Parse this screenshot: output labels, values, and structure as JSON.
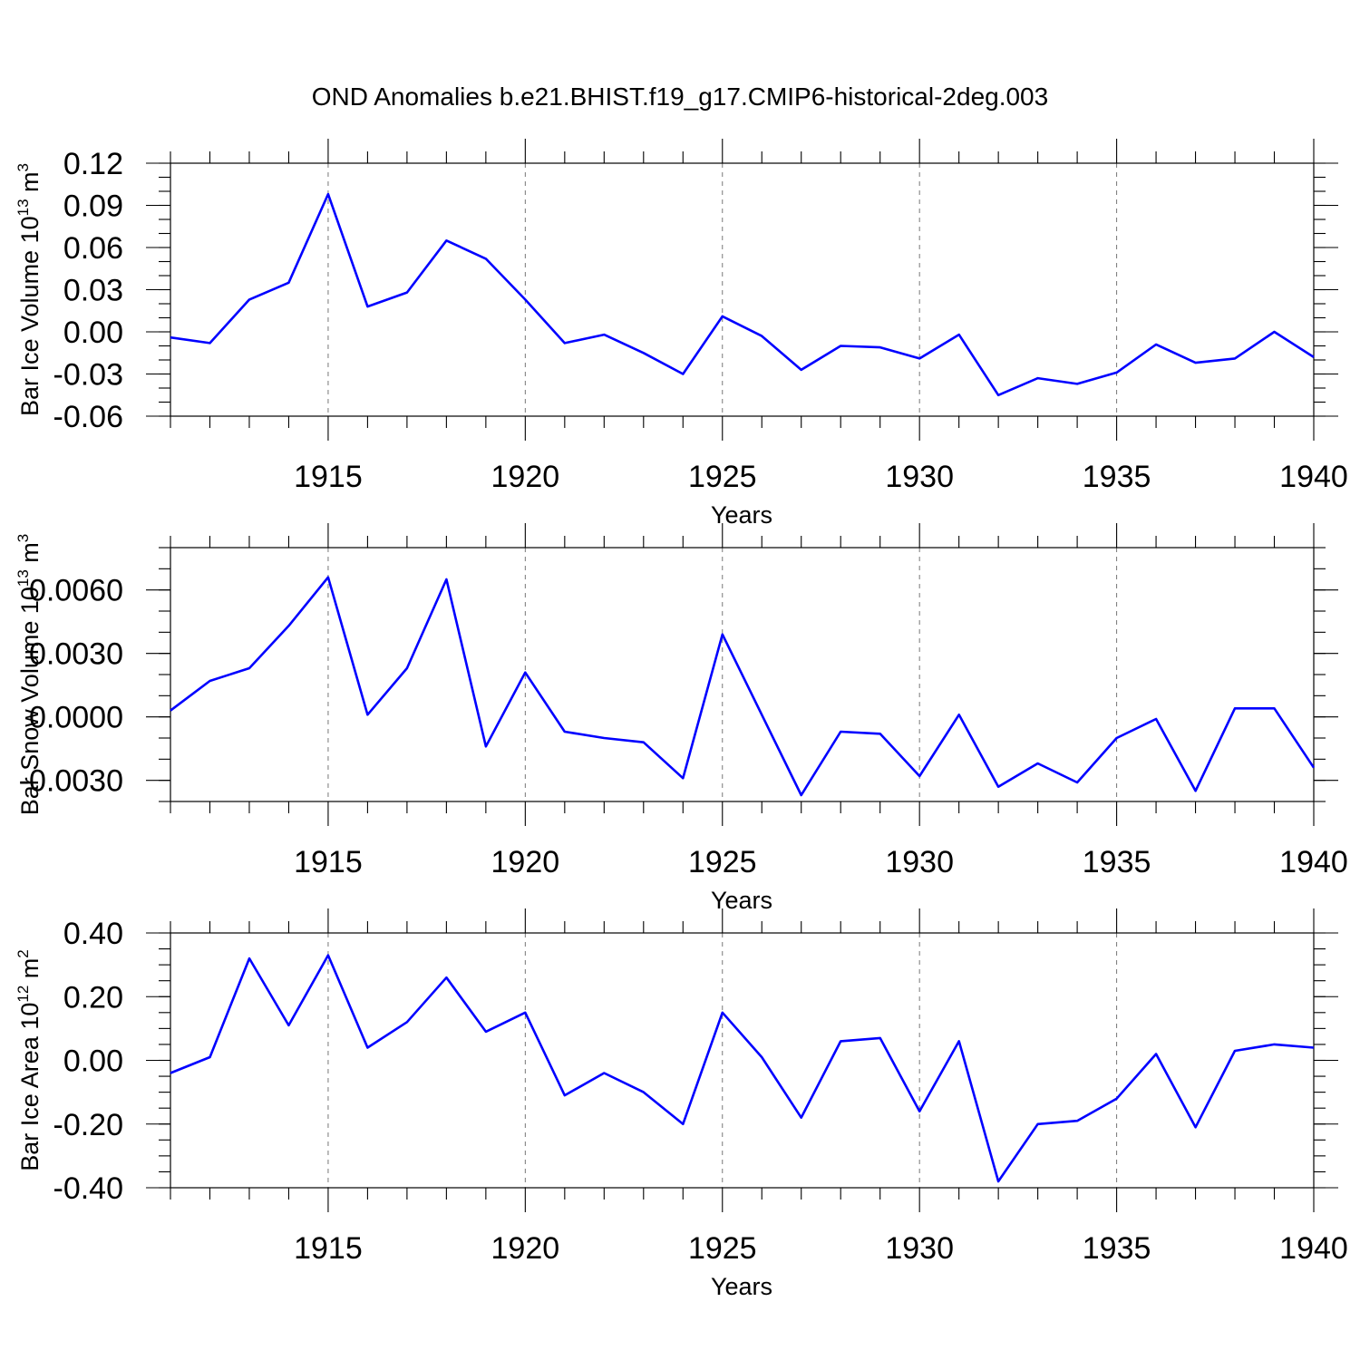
{
  "chart_title": "OND Anomalies b.e21.BHIST.f19_g17.CMIP6-historical-2deg.003",
  "line_color": "#0000ff",
  "chart_data": [
    {
      "type": "line",
      "title": "OND Anomalies b.e21.BHIST.f19_g17.CMIP6-historical-2deg.003",
      "xlabel": "Years",
      "ylabel": "Bar Ice Volume 10",
      "ylabel_exp": "13",
      "ylabel_unit": " m",
      "ylabel_unit_exp": "3",
      "xlim": [
        1911,
        1940
      ],
      "ylim": [
        -0.06,
        0.12
      ],
      "yticks": [
        -0.06,
        -0.03,
        0.0,
        0.03,
        0.06,
        0.09,
        0.12
      ],
      "ytick_labels": [
        "-0.06",
        "-0.03",
        "0.00",
        "0.03",
        "0.06",
        "0.09",
        "0.12"
      ],
      "yminor_step": 0.01,
      "xticks": [
        1915,
        1920,
        1925,
        1930,
        1935,
        1940
      ],
      "xtick_labels": [
        "1915",
        "1920",
        "1925",
        "1930",
        "1935",
        "1940"
      ],
      "grid": "vertical dashed at major x ticks",
      "x": [
        1911,
        1912,
        1913,
        1914,
        1915,
        1916,
        1917,
        1918,
        1919,
        1920,
        1921,
        1922,
        1923,
        1924,
        1925,
        1926,
        1927,
        1928,
        1929,
        1930,
        1931,
        1932,
        1933,
        1934,
        1935,
        1936,
        1937,
        1938,
        1939,
        1940
      ],
      "series": [
        {
          "name": "Bar Ice Volume",
          "values": [
            -0.004,
            -0.008,
            0.023,
            0.035,
            0.098,
            0.018,
            0.028,
            0.065,
            0.052,
            0.023,
            -0.008,
            -0.002,
            -0.015,
            -0.03,
            0.011,
            -0.003,
            -0.027,
            -0.01,
            -0.011,
            -0.019,
            -0.002,
            -0.045,
            -0.033,
            -0.037,
            -0.029,
            -0.009,
            -0.022,
            -0.019,
            0.0,
            -0.018
          ]
        }
      ]
    },
    {
      "type": "line",
      "xlabel": "Years",
      "ylabel": "Bar Snow Volume 10",
      "ylabel_exp": "13",
      "ylabel_unit": " m",
      "ylabel_unit_exp": "3",
      "xlim": [
        1911,
        1940
      ],
      "ylim": [
        -0.004,
        0.008
      ],
      "yticks": [
        -0.003,
        0.0,
        0.003,
        0.006
      ],
      "ytick_labels": [
        "-0.0030",
        "0.0000",
        "0.0030",
        "0.0060"
      ],
      "yminor_step": 0.001,
      "xticks": [
        1915,
        1920,
        1925,
        1930,
        1935,
        1940
      ],
      "xtick_labels": [
        "1915",
        "1920",
        "1925",
        "1930",
        "1935",
        "1940"
      ],
      "grid": "vertical dashed at major x ticks",
      "x": [
        1911,
        1912,
        1913,
        1914,
        1915,
        1916,
        1917,
        1918,
        1919,
        1920,
        1921,
        1922,
        1923,
        1924,
        1925,
        1926,
        1927,
        1928,
        1929,
        1930,
        1931,
        1932,
        1933,
        1934,
        1935,
        1936,
        1937,
        1938,
        1939,
        1940
      ],
      "series": [
        {
          "name": "Bar Snow Volume",
          "values": [
            0.0003,
            0.0017,
            0.0023,
            0.0043,
            0.0066,
            0.0001,
            0.0023,
            0.0065,
            -0.0014,
            0.0021,
            -0.0007,
            -0.001,
            -0.0012,
            -0.0029,
            0.0039,
            0.0001,
            -0.0037,
            -0.0007,
            -0.0008,
            -0.0028,
            0.0001,
            -0.0033,
            -0.0022,
            -0.0031,
            -0.001,
            -0.0001,
            -0.0035,
            0.0004,
            0.0004,
            -0.0024
          ]
        }
      ]
    },
    {
      "type": "line",
      "xlabel": "Years",
      "ylabel": "Bar Ice Area 10",
      "ylabel_exp": "12",
      "ylabel_unit": " m",
      "ylabel_unit_exp": "2",
      "xlim": [
        1911,
        1940
      ],
      "ylim": [
        -0.4,
        0.4
      ],
      "yticks": [
        -0.4,
        -0.2,
        0.0,
        0.2,
        0.4
      ],
      "ytick_labels": [
        "-0.40",
        "-0.20",
        "0.00",
        "0.20",
        "0.40"
      ],
      "yminor_step": 0.05,
      "xticks": [
        1915,
        1920,
        1925,
        1930,
        1935,
        1940
      ],
      "xtick_labels": [
        "1915",
        "1920",
        "1925",
        "1930",
        "1935",
        "1940"
      ],
      "grid": "vertical dashed at major x ticks",
      "x": [
        1911,
        1912,
        1913,
        1914,
        1915,
        1916,
        1917,
        1918,
        1919,
        1920,
        1921,
        1922,
        1923,
        1924,
        1925,
        1926,
        1927,
        1928,
        1929,
        1930,
        1931,
        1932,
        1933,
        1934,
        1935,
        1936,
        1937,
        1938,
        1939,
        1940
      ],
      "series": [
        {
          "name": "Bar Ice Area",
          "values": [
            -0.04,
            0.01,
            0.32,
            0.11,
            0.33,
            0.04,
            0.12,
            0.26,
            0.09,
            0.15,
            -0.11,
            -0.04,
            -0.1,
            -0.2,
            0.15,
            0.01,
            -0.18,
            0.06,
            0.07,
            -0.16,
            0.06,
            -0.38,
            -0.2,
            -0.19,
            -0.12,
            0.02,
            -0.21,
            0.03,
            0.05,
            0.04
          ]
        }
      ]
    }
  ]
}
